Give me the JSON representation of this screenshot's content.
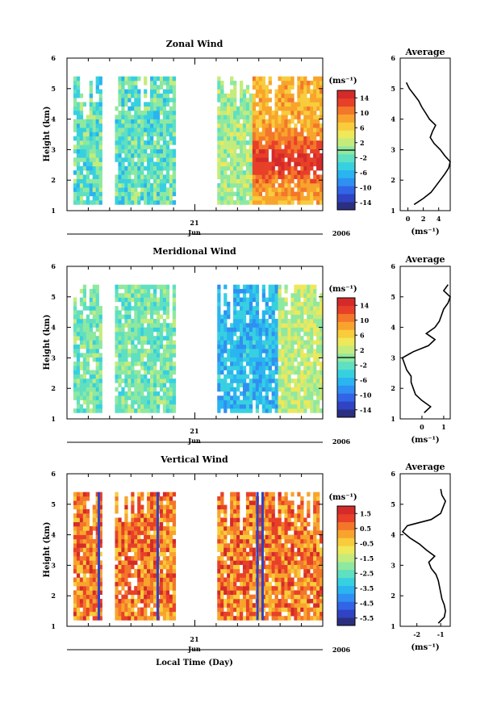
{
  "x_axis": {
    "day_label": "21",
    "month_label": "Jun",
    "year_label": "2006",
    "title": "Local Time (Day)"
  },
  "units_label": "(ms⁻¹)",
  "chart_data": [
    {
      "type": "heatmap",
      "title": "Zonal Wind",
      "ylabel": "Height (km)",
      "ylim": [
        1,
        6
      ],
      "yticks": [
        "1",
        "2",
        "3",
        "4",
        "5",
        "6"
      ],
      "colorbar": {
        "unit": "(ms⁻¹)",
        "levels": [
          "-14",
          "-10",
          "-6",
          "-2",
          "2",
          "6",
          "10",
          "14"
        ],
        "range": [
          -16,
          16
        ],
        "zero_line": 0
      },
      "data_segments": [
        {
          "start": 0.03,
          "end": 0.14
        },
        {
          "start": 0.19,
          "end": 0.43
        },
        {
          "start": 0.59,
          "end": 1.0
        }
      ],
      "profile": {
        "title": "Average",
        "xlabel": "(ms⁻¹)",
        "xlim": [
          -1,
          5.5
        ],
        "xticks": [
          "0",
          "2",
          "4"
        ],
        "xtick_values": [
          0,
          2,
          4
        ],
        "heights": [
          1.2,
          1.4,
          1.6,
          1.8,
          2.0,
          2.2,
          2.4,
          2.6,
          2.8,
          3.0,
          3.2,
          3.4,
          3.6,
          3.8,
          4.0,
          4.2,
          4.4,
          4.6,
          4.8,
          5.0,
          5.2
        ],
        "values": [
          0.8,
          2.0,
          3.0,
          3.6,
          4.2,
          4.8,
          5.3,
          5.5,
          4.8,
          4.2,
          3.4,
          2.9,
          3.2,
          3.6,
          2.8,
          2.3,
          1.8,
          1.4,
          0.8,
          0.2,
          -0.2
        ]
      }
    },
    {
      "type": "heatmap",
      "title": "Meridional Wind",
      "ylabel": "Height (km)",
      "ylim": [
        1,
        6
      ],
      "yticks": [
        "1",
        "2",
        "3",
        "4",
        "5",
        "6"
      ],
      "colorbar": {
        "unit": "(ms⁻¹)",
        "levels": [
          "-14",
          "-10",
          "-6",
          "-2",
          "2",
          "6",
          "10",
          "14"
        ],
        "range": [
          -16,
          16
        ],
        "zero_line": 0
      },
      "data_segments": [
        {
          "start": 0.03,
          "end": 0.14
        },
        {
          "start": 0.19,
          "end": 0.43
        },
        {
          "start": 0.59,
          "end": 1.0
        }
      ],
      "profile": {
        "title": "Average",
        "xlabel": "(ms⁻¹)",
        "xlim": [
          -1,
          1.3
        ],
        "xticks": [
          "0",
          "1"
        ],
        "xtick_values": [
          0,
          1
        ],
        "heights": [
          1.2,
          1.4,
          1.6,
          1.8,
          2.0,
          2.2,
          2.4,
          2.6,
          2.8,
          3.0,
          3.2,
          3.4,
          3.6,
          3.8,
          4.0,
          4.2,
          4.4,
          4.6,
          4.8,
          5.0,
          5.2,
          5.4
        ],
        "values": [
          0.1,
          0.4,
          0.0,
          -0.3,
          -0.4,
          -0.5,
          -0.5,
          -0.7,
          -0.8,
          -0.9,
          -0.4,
          0.3,
          0.6,
          0.2,
          0.6,
          0.8,
          0.9,
          1.0,
          1.2,
          1.3,
          1.0,
          1.2
        ]
      }
    },
    {
      "type": "heatmap",
      "title": "Vertical Wind",
      "ylabel": "Height (km)",
      "ylim": [
        1,
        6
      ],
      "yticks": [
        "1",
        "2",
        "3",
        "4",
        "5",
        "6"
      ],
      "colorbar": {
        "unit": "(ms⁻¹)",
        "levels": [
          "-5.5",
          "-4.5",
          "-3.5",
          "-2.5",
          "-1.5",
          "-0.5",
          "0.5",
          "1.5"
        ],
        "range": [
          -6,
          2
        ],
        "zero_line": null
      },
      "data_segments": [
        {
          "start": 0.03,
          "end": 0.14
        },
        {
          "start": 0.19,
          "end": 0.43
        },
        {
          "start": 0.59,
          "end": 1.0
        }
      ],
      "profile": {
        "title": "Average",
        "xlabel": "(ms⁻¹)",
        "xlim": [
          -2.7,
          -0.6
        ],
        "xticks": [
          "-2",
          "-1"
        ],
        "xtick_values": [
          -2,
          -1
        ],
        "heights": [
          1.1,
          1.3,
          1.5,
          1.7,
          1.9,
          2.1,
          2.3,
          2.5,
          2.7,
          2.9,
          3.1,
          3.3,
          3.5,
          3.7,
          3.9,
          4.1,
          4.3,
          4.5,
          4.7,
          4.9,
          5.1,
          5.3,
          5.5
        ],
        "values": [
          -1.1,
          -0.85,
          -0.8,
          -0.85,
          -0.95,
          -1.0,
          -1.05,
          -1.1,
          -1.2,
          -1.4,
          -1.5,
          -1.25,
          -1.6,
          -1.9,
          -2.3,
          -2.6,
          -2.4,
          -1.4,
          -1.0,
          -0.9,
          -0.8,
          -0.95,
          -1.0
        ]
      }
    }
  ]
}
